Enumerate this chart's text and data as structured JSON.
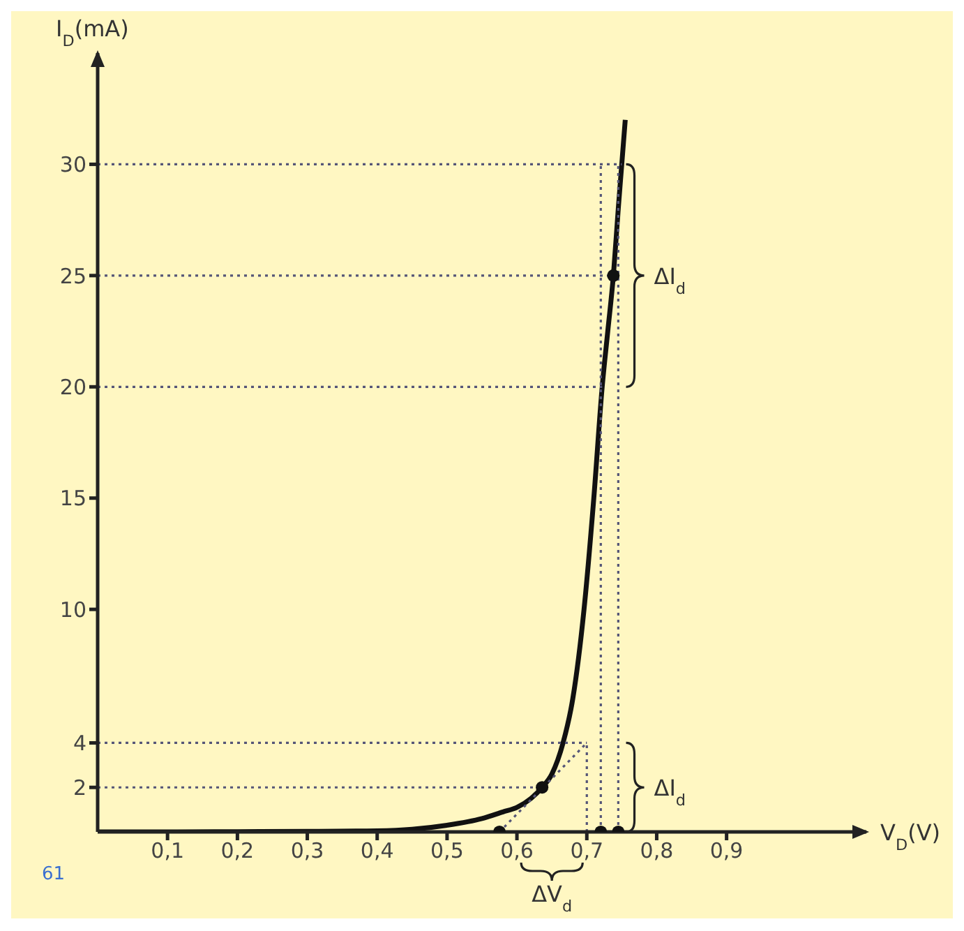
{
  "chart_data": {
    "type": "line",
    "xlabel": "V$_{D}$(V)",
    "ylabel": "I$_{D}$(mA)",
    "xlim": [
      0,
      1.1
    ],
    "ylim": [
      0,
      35
    ],
    "xticks": [
      {
        "value": 0.1,
        "label": "0,1"
      },
      {
        "value": 0.2,
        "label": "0,2"
      },
      {
        "value": 0.3,
        "label": "0,3"
      },
      {
        "value": 0.4,
        "label": "0,4"
      },
      {
        "value": 0.5,
        "label": "0,5"
      },
      {
        "value": 0.6,
        "label": "0,6"
      },
      {
        "value": 0.7,
        "label": "0,7"
      },
      {
        "value": 0.8,
        "label": "0,8"
      },
      {
        "value": 0.9,
        "label": "0,9"
      }
    ],
    "yticks": [
      2,
      4,
      10,
      15,
      20,
      25,
      30
    ],
    "series": [
      {
        "color": "#111111",
        "marker": "none",
        "x": [
          0,
          0.1,
          0.2,
          0.3,
          0.4,
          0.45,
          0.5,
          0.55,
          0.58,
          0.6,
          0.62,
          0.636,
          0.65,
          0.666,
          0.68,
          0.696,
          0.71,
          0.722,
          0.73,
          0.738,
          0.745,
          0.75,
          0.755
        ],
        "values": [
          0,
          0,
          0.01,
          0.02,
          0.05,
          0.12,
          0.3,
          0.6,
          0.9,
          1.1,
          1.5,
          2,
          2.6,
          4,
          6,
          10,
          15,
          20,
          22.5,
          25,
          28,
          30,
          32
        ]
      },
      {
        "color": "#555577",
        "marker": "none",
        "line_style": "dotted",
        "x": [
          0,
          0.75
        ],
        "values": [
          30,
          30
        ]
      },
      {
        "color": "#555577",
        "marker": "none",
        "line_style": "dotted",
        "x": [
          0,
          0.745
        ],
        "values": [
          25,
          25
        ]
      },
      {
        "color": "#555577",
        "marker": "none",
        "line_style": "dotted",
        "x": [
          0,
          0.722
        ],
        "values": [
          20,
          20
        ]
      },
      {
        "color": "#555577",
        "marker": "none",
        "line_style": "dotted",
        "x": [
          0,
          0.7
        ],
        "values": [
          4,
          4
        ]
      },
      {
        "color": "#555577",
        "marker": "none",
        "line_style": "dotted",
        "x": [
          0,
          0.636
        ],
        "values": [
          2,
          2
        ]
      },
      {
        "color": "#555577",
        "marker": "none",
        "line_style": "dotted",
        "x": [
          0.575,
          0.7
        ],
        "values": [
          0,
          4
        ]
      },
      {
        "color": "#555577",
        "marker": "none",
        "line_style": "dotted",
        "x": [
          0.7,
          0.7
        ],
        "values": [
          0,
          4
        ]
      },
      {
        "color": "#555577",
        "marker": "none",
        "line_style": "dotted",
        "x": [
          0.72,
          0.72
        ],
        "values": [
          0,
          30
        ]
      },
      {
        "color": "#555577",
        "marker": "none",
        "line_style": "dotted",
        "x": [
          0.745,
          0.745
        ],
        "values": [
          0,
          30
        ]
      },
      {
        "type": "scatter",
        "color": "#111111",
        "marker": "circle",
        "x": [
          0.575,
          0.636,
          0.72,
          0.738,
          0.745
        ],
        "values": [
          0,
          2,
          0,
          25,
          0
        ]
      }
    ],
    "annotations": [
      "ΔI$_{d}$",
      "ΔI$_{d}$",
      "ΔV$_{d}$",
      "61"
    ]
  }
}
